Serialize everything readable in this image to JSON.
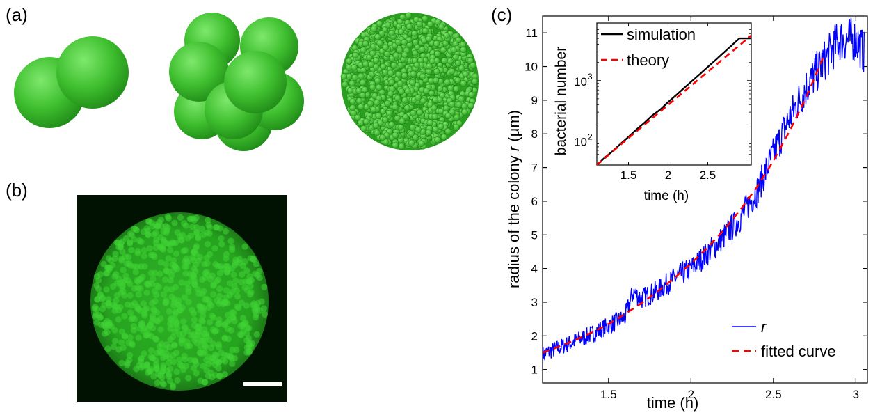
{
  "panels": {
    "a": {
      "label": "(a)"
    },
    "b": {
      "label": "(b)"
    },
    "c": {
      "label": "(c)"
    }
  },
  "colors": {
    "cell_green": "#3fbf2f",
    "cell_dark": "#1f8a17",
    "micrograph_bg": "#021202",
    "micrograph_green": "#34c92a",
    "line_r": "#0000ff",
    "fit_red": "#ff0000",
    "simulation_black": "#000000"
  },
  "chart_data": [
    {
      "type": "line",
      "xlabel": "time (h)",
      "ylabel": "radius of the colony r (μm)",
      "ylabel_parts": {
        "prefix": "radius of the colony ",
        "var": "r",
        "unit": " (μm)"
      },
      "xlim": [
        1.1,
        3.07
      ],
      "ylim": [
        0.6,
        11.5
      ],
      "xticks": [
        1.5,
        2,
        2.5,
        3
      ],
      "yticks": [
        1,
        2,
        3,
        4,
        5,
        6,
        7,
        8,
        9,
        10,
        11
      ],
      "legend_position": "bottom-right",
      "series": [
        {
          "name": "r",
          "style": "solid",
          "color": "#0000ff",
          "x": [
            1.1,
            1.2,
            1.3,
            1.4,
            1.5,
            1.6,
            1.65,
            1.7,
            1.8,
            1.9,
            2.0,
            2.1,
            2.2,
            2.3,
            2.4,
            2.5,
            2.6,
            2.7,
            2.8,
            2.9,
            3.0,
            3.05
          ],
          "y": [
            1.45,
            1.65,
            1.85,
            2.05,
            2.3,
            2.55,
            3.3,
            3.1,
            3.35,
            3.7,
            4.0,
            4.45,
            4.95,
            5.5,
            6.3,
            7.4,
            8.5,
            9.4,
            10.1,
            10.8,
            10.8,
            10.4
          ]
        },
        {
          "name": "fitted curve",
          "style": "dashed",
          "color": "#ff0000",
          "x": [
            1.1,
            1.2,
            1.3,
            1.4,
            1.5,
            1.6,
            1.7,
            1.8,
            1.9,
            2.0,
            2.1,
            2.2,
            2.3,
            2.4,
            2.5,
            2.6,
            2.7,
            2.8
          ],
          "y": [
            1.5,
            1.68,
            1.88,
            2.1,
            2.35,
            2.65,
            2.97,
            3.33,
            3.72,
            4.15,
            4.62,
            5.15,
            5.75,
            6.42,
            7.2,
            8.1,
            9.1,
            10.25
          ]
        }
      ]
    },
    {
      "type": "line",
      "inset": true,
      "xlabel": "time (h)",
      "ylabel": "bacterial number",
      "yscale": "log",
      "xlim": [
        1.1,
        3.05
      ],
      "ylim": [
        40,
        9000
      ],
      "xticks": [
        1.5,
        2,
        2.5
      ],
      "yticks": [
        100,
        1000
      ],
      "ytick_labels": [
        {
          "base": "10",
          "exp": "2"
        },
        {
          "base": "10",
          "exp": "3"
        }
      ],
      "legend_position": "top-left",
      "series": [
        {
          "name": "simulation",
          "style": "solid",
          "color": "#000000",
          "x": [
            1.1,
            1.2,
            1.3,
            1.4,
            1.5,
            1.6,
            1.7,
            1.8,
            1.9,
            2.0,
            2.1,
            2.2,
            2.3,
            2.4,
            2.5,
            2.6,
            2.7,
            2.8,
            2.9,
            3.05
          ],
          "y": [
            40,
            53,
            68,
            90,
            117,
            155,
            200,
            265,
            330,
            440,
            570,
            750,
            980,
            1280,
            1680,
            2200,
            2900,
            3800,
            5000,
            5000
          ]
        },
        {
          "name": "theory",
          "style": "dashed",
          "color": "#ff0000",
          "x": [
            1.1,
            1.5,
            2.0,
            2.5,
            3.05
          ],
          "y": [
            40,
            112,
            395,
            1400,
            5600
          ]
        }
      ]
    }
  ]
}
